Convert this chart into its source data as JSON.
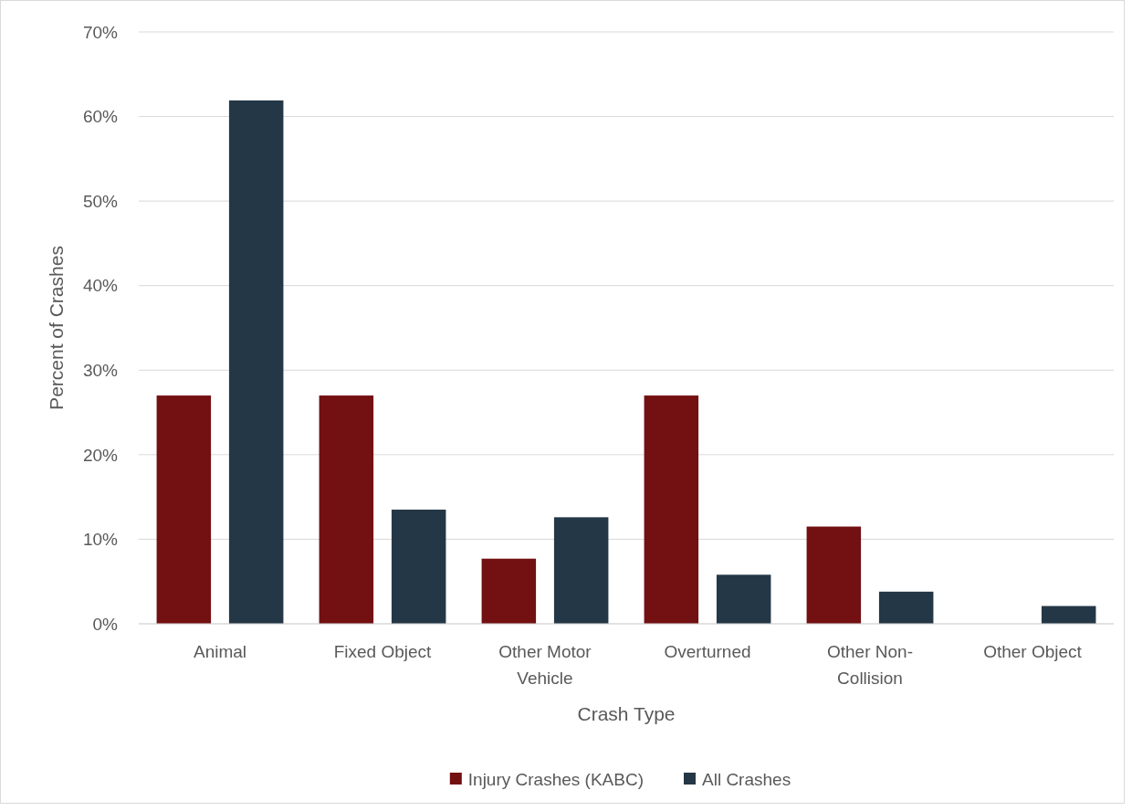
{
  "chart_data": {
    "type": "bar",
    "xlabel": "Crash Type",
    "ylabel": "Percent of Crashes",
    "categories": [
      "Animal",
      "Fixed Object",
      "Other Motor Vehicle",
      "Overturned",
      "Other Non-Collision",
      "Other Object"
    ],
    "series": [
      {
        "name": "Injury Crashes (KABC)",
        "color": "#731012",
        "values": [
          27,
          27,
          7.7,
          27,
          11.5,
          0
        ]
      },
      {
        "name": "All Crashes",
        "color": "#243746",
        "values": [
          61.9,
          13.5,
          12.6,
          5.8,
          3.8,
          2.1
        ]
      }
    ],
    "ylim": [
      0,
      70
    ],
    "yticks": [
      {
        "value": 0,
        "label": "0%"
      },
      {
        "value": 10,
        "label": "10%"
      },
      {
        "value": 20,
        "label": "20%"
      },
      {
        "value": 30,
        "label": "30%"
      },
      {
        "value": 40,
        "label": "40%"
      },
      {
        "value": 50,
        "label": "50%"
      },
      {
        "value": 60,
        "label": "60%"
      },
      {
        "value": 70,
        "label": "70%"
      }
    ],
    "grid": "y",
    "legend": "bottom"
  }
}
